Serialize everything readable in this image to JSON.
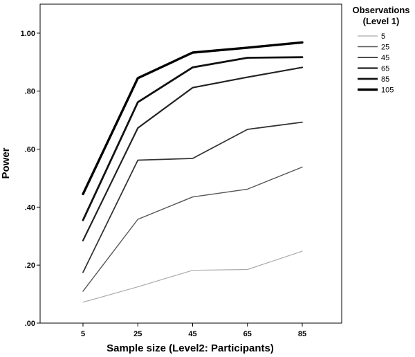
{
  "chart_data": {
    "type": "line",
    "title": "",
    "xlabel": "Sample size (Level2: Participants)",
    "ylabel": "Power",
    "x": [
      5,
      25,
      45,
      65,
      85
    ],
    "x_tick_labels": [
      "5",
      "25",
      "45",
      "65",
      "85"
    ],
    "ylim": [
      0,
      1.1
    ],
    "y_ticks": [
      0,
      0.2,
      0.4,
      0.6,
      0.8,
      1.0
    ],
    "y_tick_labels": [
      ".00",
      ".20",
      ".40",
      ".60",
      ".80",
      "1.00"
    ],
    "grid": false,
    "legend": {
      "title_line1": "Observations",
      "title_line2": "(Level 1)",
      "placement": "right"
    },
    "series": [
      {
        "name": "5",
        "values": [
          0.072,
          0.125,
          0.182,
          0.185,
          0.248
        ],
        "color": "#aaaaaa",
        "stroke": 1.2
      },
      {
        "name": "25",
        "values": [
          0.11,
          0.358,
          0.435,
          0.462,
          0.538
        ],
        "color": "#555555",
        "stroke": 1.4
      },
      {
        "name": "45",
        "values": [
          0.175,
          0.562,
          0.568,
          0.668,
          0.693
        ],
        "color": "#333333",
        "stroke": 1.8
      },
      {
        "name": "65",
        "values": [
          0.285,
          0.673,
          0.812,
          0.848,
          0.882
        ],
        "color": "#222222",
        "stroke": 2.2
      },
      {
        "name": "85",
        "values": [
          0.355,
          0.762,
          0.882,
          0.915,
          0.917
        ],
        "color": "#111111",
        "stroke": 2.8
      },
      {
        "name": "105",
        "values": [
          0.445,
          0.845,
          0.933,
          0.95,
          0.968
        ],
        "color": "#000000",
        "stroke": 3.4
      }
    ]
  }
}
